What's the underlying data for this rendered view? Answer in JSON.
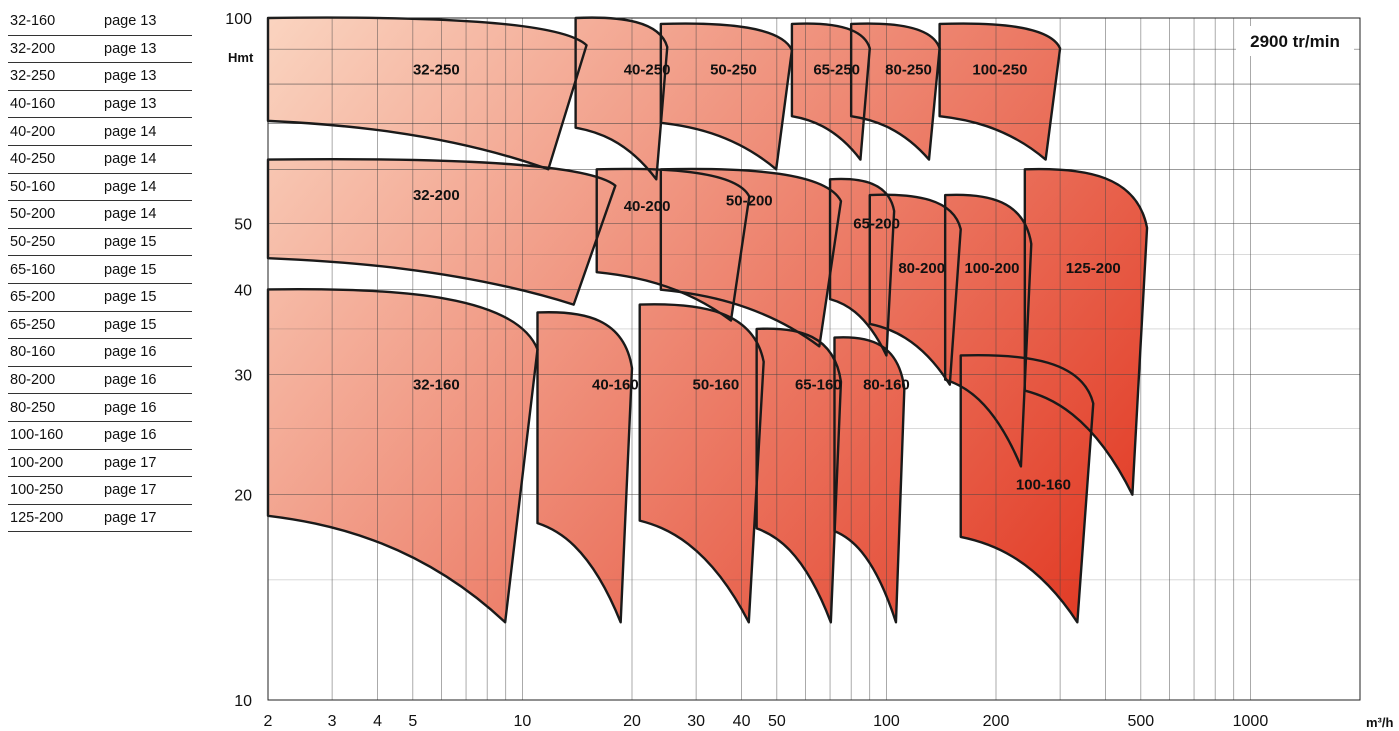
{
  "index": [
    {
      "model": "32-160",
      "page": "page 13"
    },
    {
      "model": "32-200",
      "page": "page 13"
    },
    {
      "model": "32-250",
      "page": "page 13"
    },
    {
      "model": "40-160",
      "page": "page 13"
    },
    {
      "model": "40-200",
      "page": "page 14"
    },
    {
      "model": "40-250",
      "page": "page 14"
    },
    {
      "model": "50-160",
      "page": "page 14"
    },
    {
      "model": "50-200",
      "page": "page 14"
    },
    {
      "model": "50-250",
      "page": "page 15"
    },
    {
      "model": "65-160",
      "page": "page 15"
    },
    {
      "model": "65-200",
      "page": "page 15"
    },
    {
      "model": "65-250",
      "page": "page 15"
    },
    {
      "model": "80-160",
      "page": "page 16"
    },
    {
      "model": "80-200",
      "page": "page 16"
    },
    {
      "model": "80-250",
      "page": "page 16"
    },
    {
      "model": "100-160",
      "page": "page 16"
    },
    {
      "model": "100-200",
      "page": "page 17"
    },
    {
      "model": "100-250",
      "page": "page 17"
    },
    {
      "model": "125-200",
      "page": "page 17"
    }
  ],
  "chart_data": {
    "type": "area",
    "title": "2900 tr/min",
    "ylabel": "Hmt",
    "xlabel": "m³/h",
    "x_scale": "log",
    "y_scale": "log",
    "xlim": [
      2,
      2000
    ],
    "ylim": [
      10,
      100
    ],
    "x_ticks": [
      "2",
      "3",
      "4",
      "5",
      "10",
      "20",
      "30",
      "40",
      "50",
      "100",
      "200",
      "500",
      "1000"
    ],
    "y_ticks": [
      "100",
      "50",
      "40",
      "30",
      "20",
      "10"
    ],
    "grid": true,
    "colors": {
      "light": "#fad4c0",
      "dark": "#e0301a"
    },
    "zones": [
      {
        "name": "32-250",
        "q": [
          2,
          15
        ],
        "h": [
          60,
          100
        ],
        "label_at": [
          5.8,
          84
        ]
      },
      {
        "name": "40-250",
        "q": [
          14,
          25
        ],
        "h": [
          58,
          100
        ],
        "label_at": [
          22,
          84
        ]
      },
      {
        "name": "50-250",
        "q": [
          24,
          55
        ],
        "h": [
          60,
          98
        ],
        "label_at": [
          38,
          84
        ]
      },
      {
        "name": "65-250",
        "q": [
          55,
          90
        ],
        "h": [
          62,
          98
        ],
        "label_at": [
          73,
          84
        ]
      },
      {
        "name": "80-250",
        "q": [
          80,
          140
        ],
        "h": [
          62,
          98
        ],
        "label_at": [
          115,
          84
        ]
      },
      {
        "name": "100-250",
        "q": [
          140,
          300
        ],
        "h": [
          62,
          98
        ],
        "label_at": [
          205,
          84
        ]
      },
      {
        "name": "32-200",
        "q": [
          2,
          18
        ],
        "h": [
          38,
          62
        ],
        "label_at": [
          5.8,
          55
        ]
      },
      {
        "name": "40-200",
        "q": [
          16,
          42
        ],
        "h": [
          36,
          60
        ],
        "label_at": [
          22,
          53
        ]
      },
      {
        "name": "50-200",
        "q": [
          24,
          75
        ],
        "h": [
          33,
          60
        ],
        "label_at": [
          42,
          54
        ]
      },
      {
        "name": "65-200",
        "q": [
          70,
          105
        ],
        "h": [
          32,
          58
        ],
        "label_at": [
          94,
          50
        ]
      },
      {
        "name": "80-200",
        "q": [
          90,
          160
        ],
        "h": [
          29,
          55
        ],
        "label_at": [
          125,
          43
        ]
      },
      {
        "name": "100-200",
        "q": [
          145,
          250
        ],
        "h": [
          22,
          55
        ],
        "label_at": [
          195,
          43
        ]
      },
      {
        "name": "125-200",
        "q": [
          240,
          520
        ],
        "h": [
          20,
          60
        ],
        "label_at": [
          370,
          43
        ]
      },
      {
        "name": "32-160",
        "q": [
          2,
          11
        ],
        "h": [
          13,
          40
        ],
        "label_at": [
          5.8,
          29
        ]
      },
      {
        "name": "40-160",
        "q": [
          11,
          20
        ],
        "h": [
          13,
          37
        ],
        "label_at": [
          18,
          29
        ]
      },
      {
        "name": "50-160",
        "q": [
          21,
          46
        ],
        "h": [
          13,
          38
        ],
        "label_at": [
          34,
          29
        ]
      },
      {
        "name": "65-160",
        "q": [
          44,
          75
        ],
        "h": [
          13,
          35
        ],
        "label_at": [
          65,
          29
        ]
      },
      {
        "name": "80-160",
        "q": [
          72,
          112
        ],
        "h": [
          13,
          34
        ],
        "label_at": [
          100,
          29
        ]
      },
      {
        "name": "100-160",
        "q": [
          160,
          370
        ],
        "h": [
          13,
          32
        ],
        "label_at": [
          270,
          20.7
        ]
      }
    ]
  }
}
